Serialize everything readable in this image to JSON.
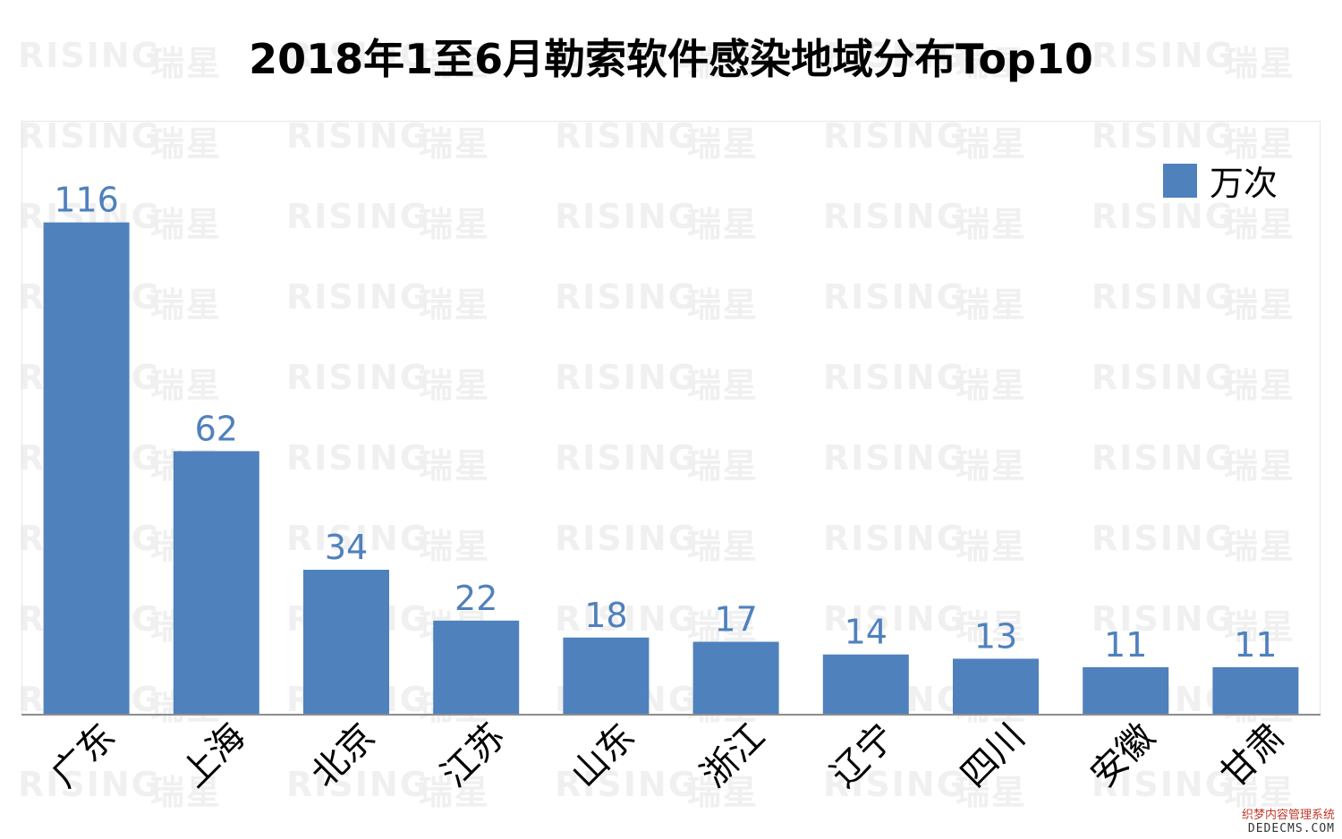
{
  "chart_data": {
    "type": "bar",
    "title": "2018年1至6月勒索软件感染地域分布Top10",
    "categories": [
      "广东",
      "上海",
      "北京",
      "江苏",
      "山东",
      "浙江",
      "辽宁",
      "四川",
      "安徽",
      "甘肃"
    ],
    "series": [
      {
        "name": "万次",
        "values": [
          116,
          62,
          34,
          22,
          18,
          17,
          14,
          13,
          11,
          11
        ]
      }
    ],
    "ylim": [
      0,
      140
    ],
    "grid": false,
    "legend_position": "top-right",
    "bar_color": "#4f81bd",
    "label_color": "#4f81bd"
  },
  "watermark": {
    "latin": "RISING",
    "cjk": "瑞星"
  },
  "footer": {
    "line1": "织梦内容管理系统",
    "line2": "DEDECMS.COM"
  }
}
